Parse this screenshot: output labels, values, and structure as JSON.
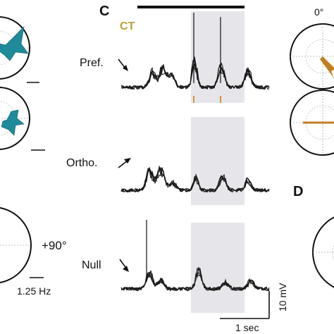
{
  "panels": {
    "c": {
      "letter": "C",
      "condition_label": "CT",
      "condition_color": "#b8a03a",
      "rows": [
        {
          "label": "Pref."
        },
        {
          "label": "Ortho."
        },
        {
          "label": "Null"
        }
      ],
      "scalebar_voltage": "10 mV",
      "scalebar_time": "1 sec",
      "stim_marker_color": "#d08a2c",
      "stim_window_color": "#e6e6ea"
    },
    "d": {
      "letter": "D"
    }
  },
  "left_polar": {
    "fill_color": "#1f8a9a",
    "angle_label": "+90°",
    "scalebar_label": "1.25 Hz"
  },
  "right_polar": {
    "top_label": "0°",
    "arrow_color": "#c08020"
  },
  "icons": [
    "direction-arrow-icon"
  ]
}
